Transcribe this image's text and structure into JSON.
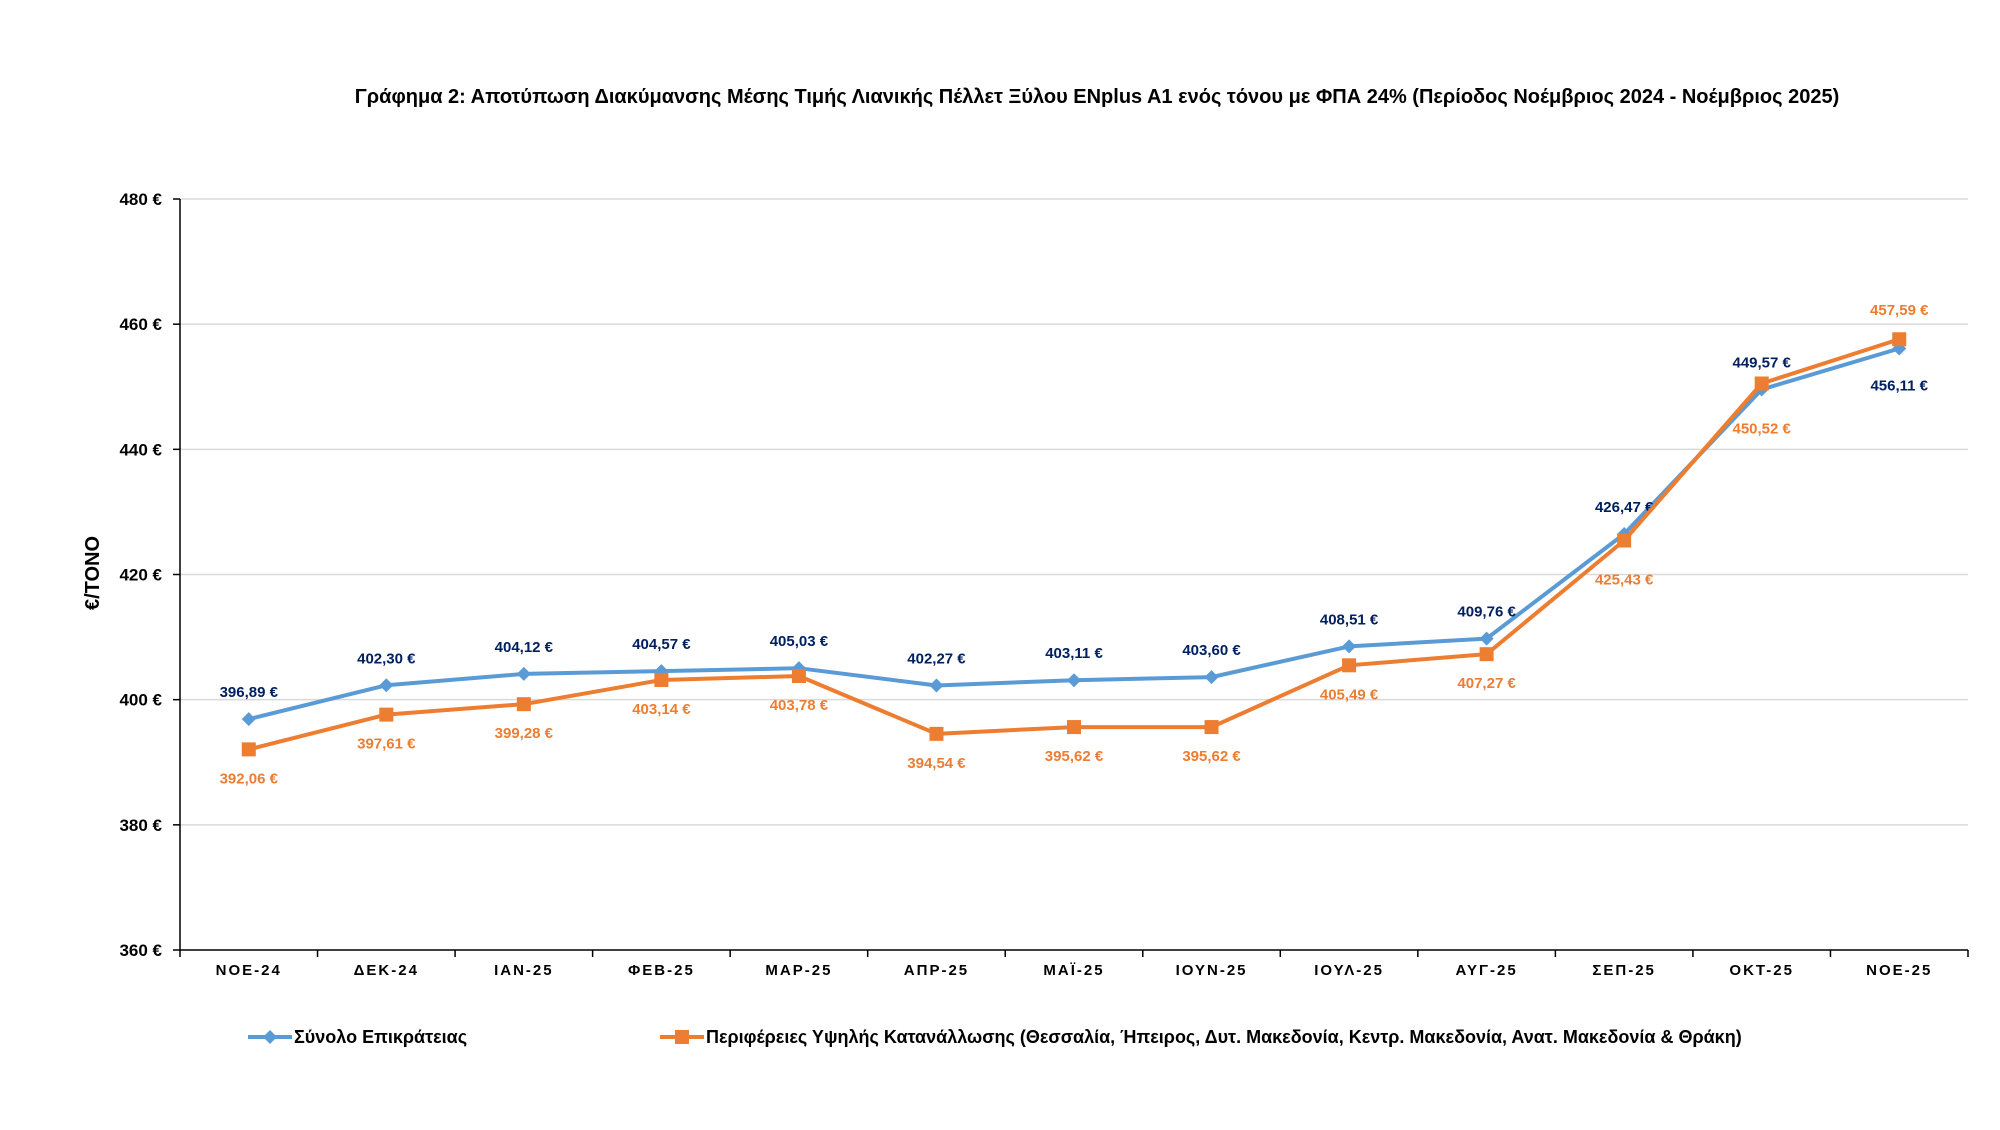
{
  "chart_data": {
    "type": "line",
    "title": "Γράφημα 2: Αποτύπωση Διακύμανσης Μέσης Τιμής Λιανικής Πέλλετ Ξύλου ENplus A1 ενός τόνου με ΦΠΑ 24% (Περίοδος Νοέμβριος 2024 - Νοέμβριος 2025)",
    "xlabel": "",
    "ylabel": "€/ΤΟΝΟ",
    "ylim": [
      360,
      480
    ],
    "yticks": [
      360,
      380,
      400,
      420,
      440,
      460,
      480
    ],
    "ytick_labels": [
      "360 €",
      "380 €",
      "400 €",
      "420 €",
      "440 €",
      "460 €",
      "480 €"
    ],
    "grid": true,
    "legend_position": "bottom",
    "categories": [
      "ΝΟΕ-24",
      "ΔΕΚ-24",
      "ΙΑΝ-25",
      "ΦΕΒ-25",
      "ΜΑΡ-25",
      "ΑΠΡ-25",
      "ΜΑΪ-25",
      "ΙΟΥΝ-25",
      "ΙΟΥΛ-25",
      "ΑΥΓ-25",
      "ΣΕΠ-25",
      "ΟΚΤ-25",
      "ΝΟΕ-25"
    ],
    "series": [
      {
        "name": "Σύνολο Επικράτειας",
        "color": "#5B9BD5",
        "label_color": "#002060",
        "marker": "diamond",
        "values": [
          396.89,
          402.3,
          404.12,
          404.57,
          405.03,
          402.27,
          403.11,
          403.6,
          408.51,
          409.76,
          426.47,
          449.57,
          456.11
        ],
        "labels": [
          "396,89 €",
          "402,30 €",
          "404,12 €",
          "404,57 €",
          "405,03 €",
          "402,27 €",
          "403,11 €",
          "403,60 €",
          "408,51 €",
          "409,76 €",
          "426,47 €",
          "449,57 €",
          "456,11 €"
        ]
      },
      {
        "name": "Περιφέρειες Υψηλής Κατανάλλωσης (Θεσσαλία, Ήπειρος, Δυτ. Μακεδονία, Κεντρ. Μακεδονία, Ανατ. Μακεδονία & Θράκη)",
        "color": "#ED7D31",
        "label_color": "#ED7D31",
        "marker": "square",
        "values": [
          392.06,
          397.61,
          399.28,
          403.14,
          403.78,
          394.54,
          395.62,
          395.62,
          405.49,
          407.27,
          425.43,
          450.52,
          457.59
        ],
        "labels": [
          "392,06 €",
          "397,61 €",
          "399,28 €",
          "403,14 €",
          "403,78 €",
          "394,54 €",
          "395,62 €",
          "395,62 €",
          "405,49 €",
          "407,27 €",
          "425,43 €",
          "450,52 €",
          "457,59 €"
        ]
      }
    ]
  }
}
